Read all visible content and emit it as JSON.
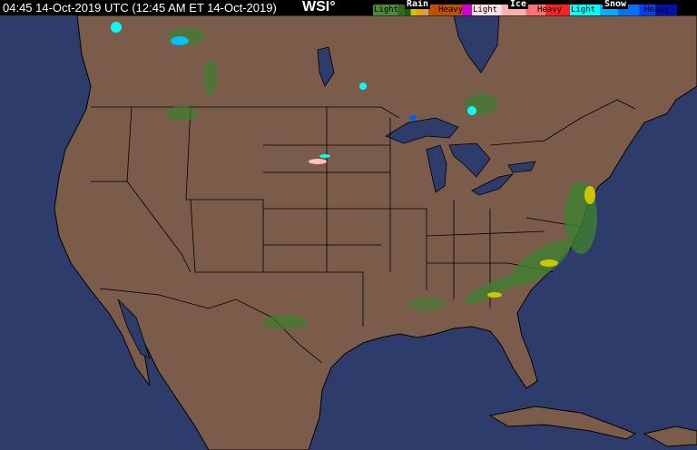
{
  "header": {
    "timestamp": "04:45 14-Oct-2019 UTC  (12:45 AM ET 14-Oct-2019)",
    "logo": "WSI°"
  },
  "legend": {
    "rain": {
      "title": "Rain",
      "light": "Light",
      "heavy": "Heavy",
      "colors": [
        "#3f7f30",
        "#2f6a20",
        "#1e5a10",
        "#c8c800",
        "#f0a000",
        "#d07000",
        "#b00000",
        "#d000d0"
      ]
    },
    "ice": {
      "title": "Ice",
      "light": "Light",
      "heavy": "Heavy",
      "colors": [
        "#ffc0c0",
        "#ff9a9a",
        "#ff7070",
        "#ff4040",
        "#ff0000"
      ]
    },
    "snow": {
      "title": "Snow",
      "light": "Light",
      "heavy": "Heavy",
      "colors": [
        "#00ffff",
        "#00c0ff",
        "#0090ff",
        "#0060ff",
        "#0030e0",
        "#0010a0"
      ]
    }
  },
  "map": {
    "land_color": "#7b5c4a",
    "water_color": "#2d3c6a",
    "border_color": "#000000"
  }
}
